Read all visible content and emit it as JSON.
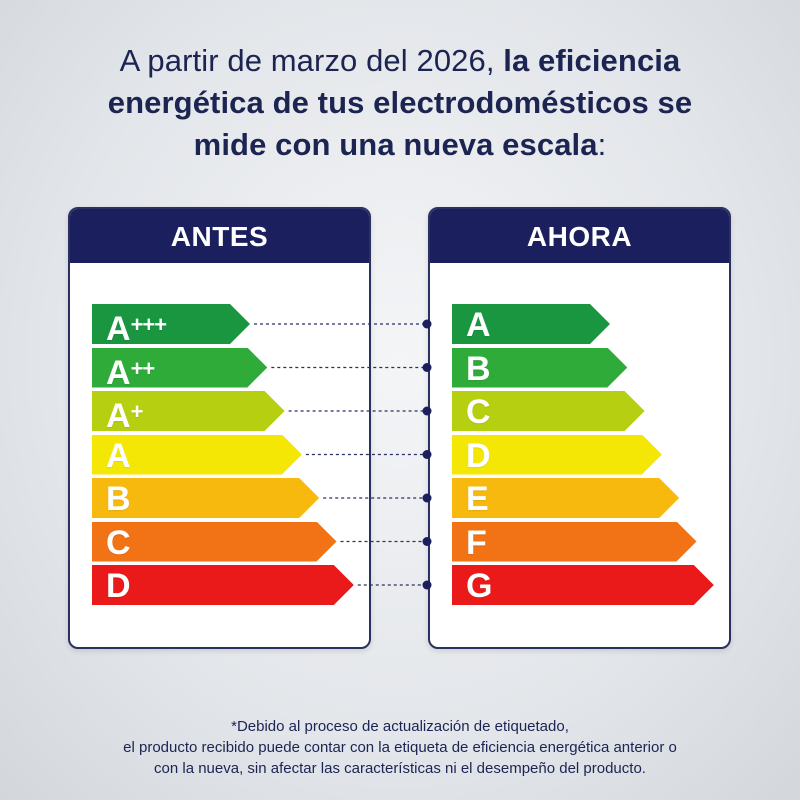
{
  "headline": {
    "line1_regular": "A partir de marzo del 2026, ",
    "line1_bold": "la eficiencia",
    "line2_bold": "energética de tus electrodomésticos se",
    "line3_bold": "mide con una nueva escala",
    "line3_end": ":"
  },
  "before": {
    "title": "ANTES",
    "classes": [
      {
        "letter": "A",
        "plus": "+++",
        "color": "#1a9640"
      },
      {
        "letter": "A",
        "plus": "++",
        "color": "#2fab3a"
      },
      {
        "letter": "A",
        "plus": "+",
        "color": "#b6cf11"
      },
      {
        "letter": "A",
        "plus": "",
        "color": "#f5e705"
      },
      {
        "letter": "B",
        "plus": "",
        "color": "#f7b90e"
      },
      {
        "letter": "C",
        "plus": "",
        "color": "#f27216"
      },
      {
        "letter": "D",
        "plus": "",
        "color": "#ea1a1a"
      }
    ]
  },
  "after": {
    "title": "AHORA",
    "classes": [
      {
        "letter": "A",
        "color": "#1a9640"
      },
      {
        "letter": "B",
        "color": "#2fab3a"
      },
      {
        "letter": "C",
        "color": "#b6cf11"
      },
      {
        "letter": "D",
        "color": "#f5e705"
      },
      {
        "letter": "E",
        "color": "#f7b90e"
      },
      {
        "letter": "F",
        "color": "#f27216"
      },
      {
        "letter": "G",
        "color": "#ea1a1a"
      }
    ]
  },
  "footnote": {
    "line1": "*Debido al proceso de actualización de etiquetado,",
    "line2": "el producto recibido puede contar con la etiqueta de eficiencia energética anterior o",
    "line3": "con la nueva, sin afectar las características ni el desempeño del producto."
  },
  "colors": {
    "navy": "#1b1f5e",
    "connector": "#2a3060"
  }
}
